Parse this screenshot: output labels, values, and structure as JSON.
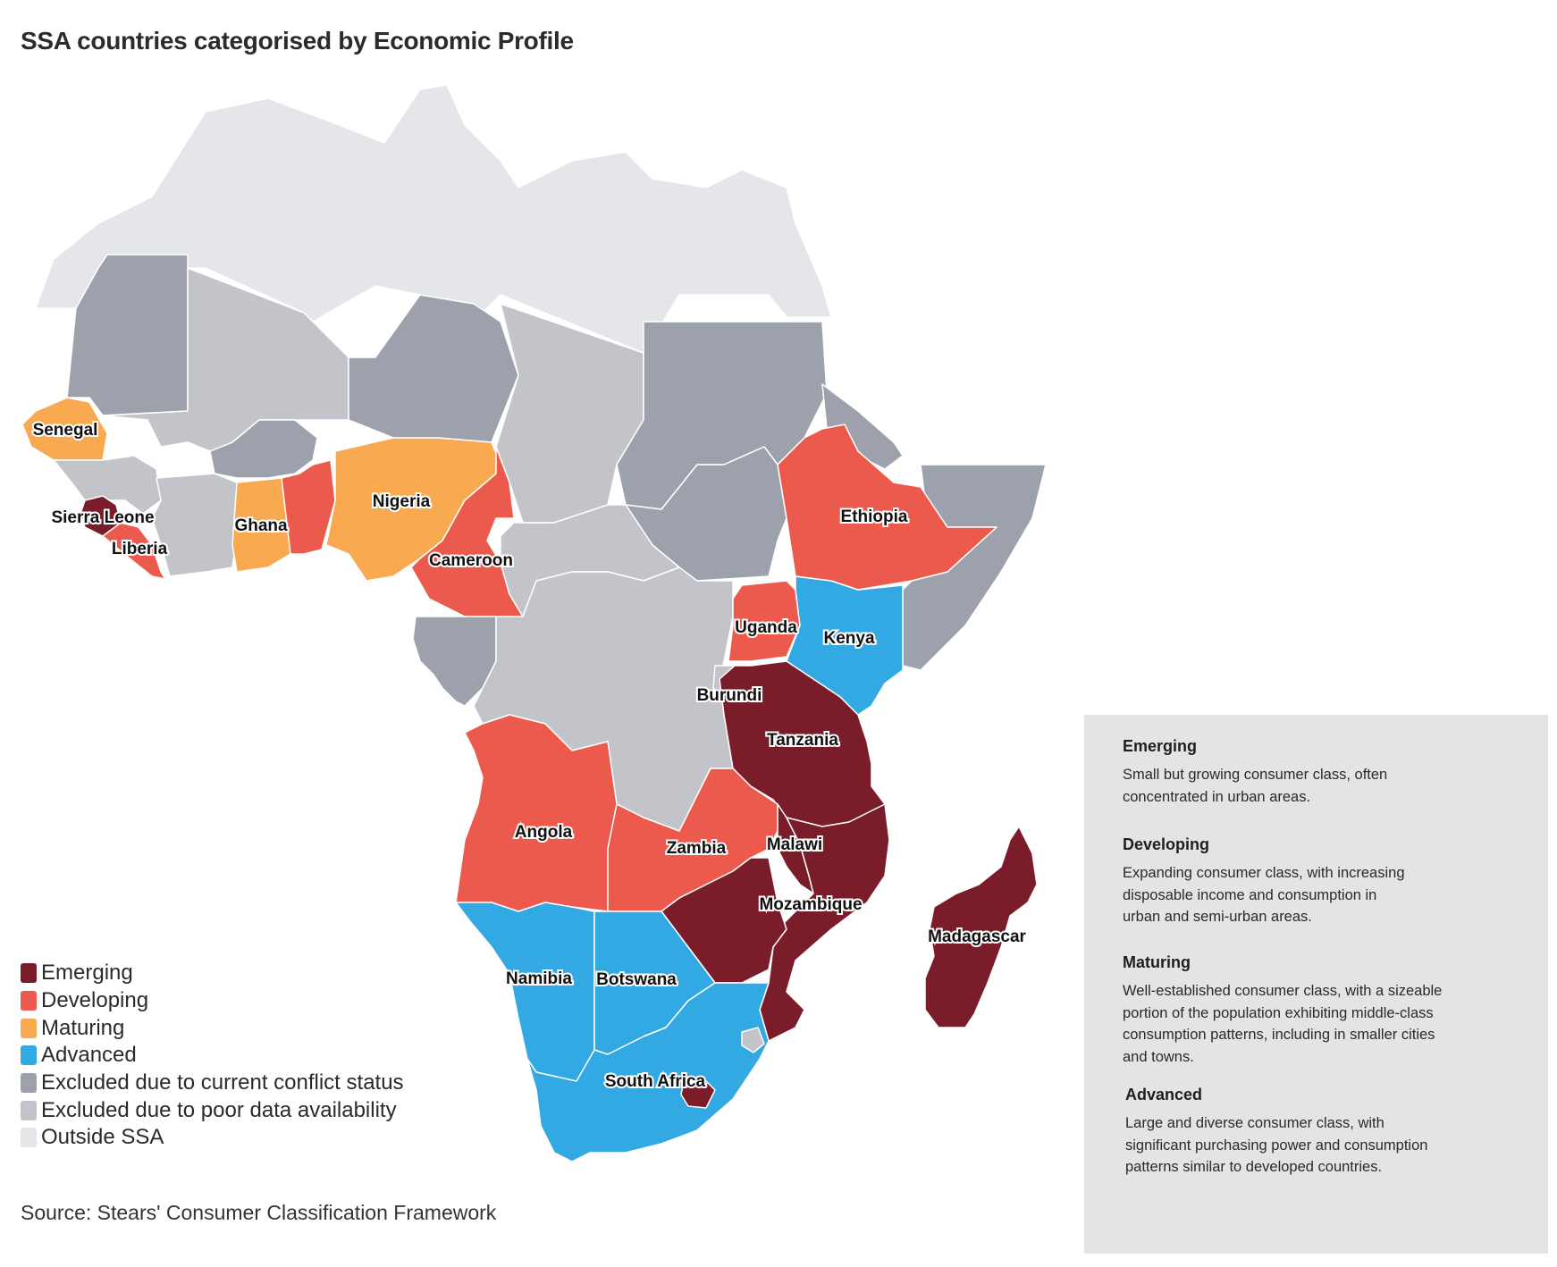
{
  "title": "SSA countries categorised by Economic Profile",
  "source": "Source: Stears' Consumer Classification Framework",
  "colors": {
    "emerging": "#7b1c2a",
    "developing": "#eb5a4c",
    "maturing": "#f9a94f",
    "advanced": "#33a9e3",
    "conflict": "#9da1ac",
    "poor_data": "#c2c4ca",
    "outside": "#e4e6ea"
  },
  "map_data": {
    "country_labels": {
      "senegal": "Senegal",
      "sierra_leone": "Sierra Leone",
      "liberia": "Liberia",
      "ghana": "Ghana",
      "nigeria": "Nigeria",
      "cameroon": "Cameroon",
      "ethiopia": "Ethiopia",
      "uganda": "Uganda",
      "kenya": "Kenya",
      "burundi": "Burundi",
      "tanzania": "Tanzania",
      "angola": "Angola",
      "zambia": "Zambia",
      "malawi": "Malawi",
      "mozambique": "Mozambique",
      "madagascar": "Madagascar",
      "namibia": "Namibia",
      "botswana": "Botswana",
      "south_africa": "South Africa"
    }
  },
  "legend": [
    {
      "label": "Emerging",
      "color": "#7b1c2a"
    },
    {
      "label": "Developing",
      "color": "#eb5a4c"
    },
    {
      "label": "Maturing",
      "color": "#f9a94f"
    },
    {
      "label": "Advanced",
      "color": "#33a9e3"
    },
    {
      "label": "Excluded due to current conflict status",
      "color": "#9da1ac"
    },
    {
      "label": "Excluded due to poor data availability",
      "color": "#c2c4ca"
    },
    {
      "label": "Outside SSA",
      "color": "#e4e6ea"
    }
  ],
  "descriptions": [
    {
      "title": "Emerging",
      "text": [
        "Small but growing consumer class, often",
        "concentrated in urban  areas."
      ]
    },
    {
      "title": "Developing",
      "text": [
        "Expanding consumer class, with increasing",
        "disposable income and consumption in",
        "urban and semi-urban areas."
      ]
    },
    {
      "title": "Maturing",
      "text": [
        "Well-established consumer class, with a sizeable",
        "portion of the population exhibiting middle-class",
        "consumption patterns, including in smaller cities",
        "and towns."
      ]
    },
    {
      "title": "Advanced",
      "text": [
        "Large and diverse consumer class, with",
        "significant purchasing power and consumption",
        "patterns similar to developed countries."
      ]
    }
  ]
}
